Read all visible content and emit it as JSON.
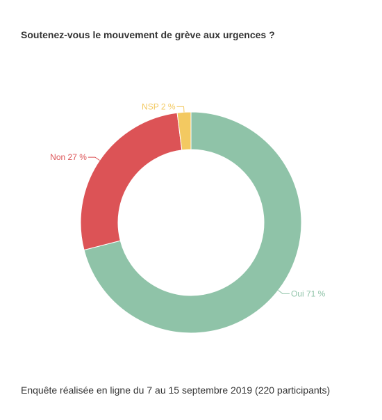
{
  "title": "Soutenez-vous le mouvement de grève aux urgences ?",
  "footer": "Enquête réalisée en ligne du 7 au 15 septembre 2019 (220 participants)",
  "chart_data": {
    "type": "pie",
    "donut": true,
    "title": "Soutenez-vous le mouvement de grève aux urgences ?",
    "slices": [
      {
        "name": "Oui",
        "value": 71,
        "label": "Oui 71 %",
        "color": "#8fc3a8"
      },
      {
        "name": "Non",
        "value": 27,
        "label": "Non 27 %",
        "color": "#dc5356"
      },
      {
        "name": "NSP",
        "value": 2,
        "label": "NSP 2 %",
        "color": "#f3c961"
      }
    ],
    "legend": "none"
  }
}
